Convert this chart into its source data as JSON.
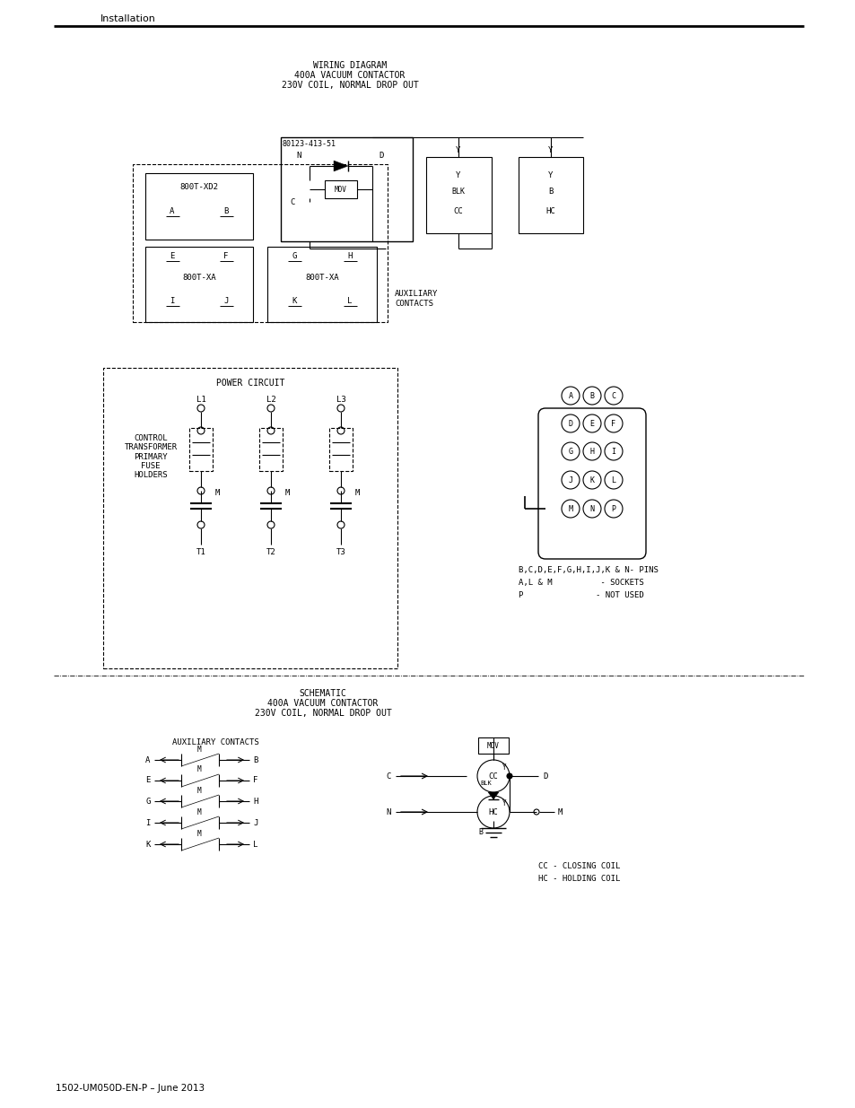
{
  "bg_color": "#ffffff",
  "text_color": "#000000",
  "line_color": "#000000",
  "page_title_header": "Installation",
  "footer_text": "1502-UM050D-EN-P – June 2013",
  "wiring_title": [
    "WIRING DIAGRAM",
    "400A VACUUM CONTACTOR",
    "230V COIL, NORMAL DROP OUT"
  ],
  "power_title": "POWER CIRCUIT",
  "schematic_title": [
    "SCHEMATIC",
    "400A VACUUM CONTACTOR",
    "230V COIL, NORMAL DROP OUT"
  ],
  "pin_legend": [
    "B,C,D,E,F,G,H,I,J,K & N- PINS",
    "A,L & M          - SOCKETS",
    "P               - NOT USED"
  ],
  "legend_cc": "CC - CLOSING COIL",
  "legend_hc": "HC - HOLDING COIL"
}
